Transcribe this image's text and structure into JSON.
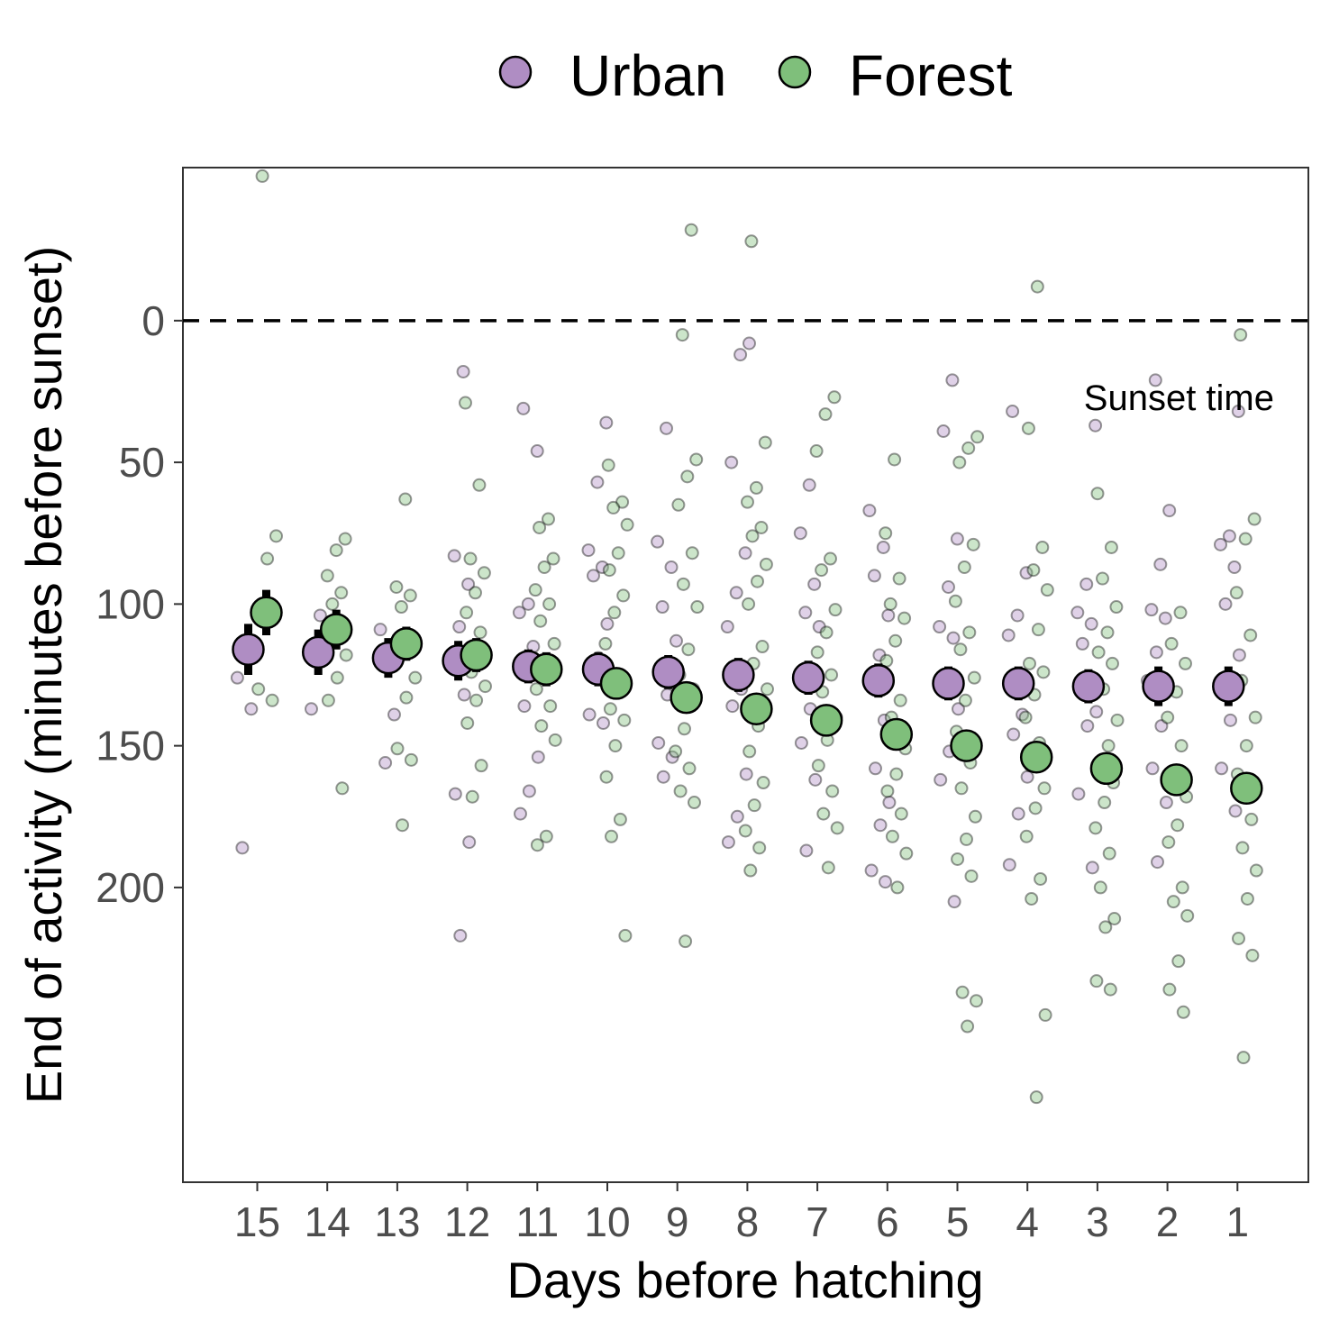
{
  "chart_data": {
    "type": "scatter",
    "title": "",
    "xlabel": "Days before hatching",
    "ylabel": "End of activity (minutes before sunset)",
    "categories": [
      "15",
      "14",
      "13",
      "12",
      "11",
      "10",
      "9",
      "8",
      "7",
      "6",
      "5",
      "4",
      "3",
      "2",
      "1"
    ],
    "ylim": [
      -54,
      304
    ],
    "y_reversed": true,
    "y_ticks": [
      0,
      50,
      100,
      150,
      200
    ],
    "reference_line": {
      "value": 0,
      "label": "Sunset time",
      "style": "dashed"
    },
    "legend": {
      "position": "top",
      "entries": [
        "Urban",
        "Forest"
      ]
    },
    "grid": false,
    "series": [
      {
        "name": "Urban",
        "color": "#af8dc3",
        "means": [
          116,
          117,
          119,
          120,
          122,
          123,
          124,
          125,
          126,
          127,
          128,
          128,
          129,
          129,
          129
        ],
        "error": [
          9,
          8,
          7,
          7,
          6,
          6,
          6,
          6,
          6,
          6,
          6,
          6,
          6,
          7,
          7
        ],
        "points": [
          [
            126,
            137,
            186
          ],
          [
            104,
            137
          ],
          [
            109,
            139,
            156
          ],
          [
            18,
            83,
            93,
            108,
            122,
            132,
            167,
            184,
            217
          ],
          [
            31,
            46,
            100,
            103,
            115,
            136,
            154,
            166,
            174
          ],
          [
            36,
            57,
            81,
            87,
            90,
            107,
            119,
            139,
            142
          ],
          [
            38,
            78,
            87,
            101,
            113,
            132,
            149,
            154,
            161
          ],
          [
            8,
            12,
            50,
            82,
            96,
            108,
            130,
            136,
            160,
            175,
            184
          ],
          [
            58,
            75,
            93,
            103,
            108,
            137,
            149,
            162,
            187
          ],
          [
            67,
            80,
            90,
            104,
            118,
            125,
            141,
            158,
            170,
            178,
            194,
            198
          ],
          [
            21,
            39,
            77,
            94,
            108,
            112,
            125,
            137,
            152,
            162,
            205
          ],
          [
            32,
            89,
            104,
            111,
            139,
            146,
            161,
            174,
            192
          ],
          [
            37,
            93,
            103,
            107,
            114,
            138,
            143,
            167,
            193
          ],
          [
            21,
            67,
            86,
            102,
            105,
            117,
            127,
            143,
            158,
            170,
            191
          ],
          [
            32,
            76,
            79,
            87,
            100,
            118,
            141,
            158,
            173
          ]
        ]
      },
      {
        "name": "Forest",
        "color": "#7fbf7b",
        "means": [
          103,
          109,
          114,
          118,
          123,
          128,
          133,
          137,
          141,
          146,
          150,
          154,
          158,
          162,
          165
        ],
        "error": [
          8,
          7,
          6,
          6,
          6,
          5,
          5,
          5,
          5,
          5,
          5,
          4,
          4,
          4,
          4
        ],
        "points": [
          [
            -51,
            76,
            84,
            130,
            134
          ],
          [
            77,
            81,
            90,
            96,
            100,
            118,
            126,
            134,
            165
          ],
          [
            63,
            94,
            97,
            101,
            126,
            133,
            151,
            155,
            178
          ],
          [
            29,
            58,
            84,
            89,
            96,
            103,
            110,
            124,
            129,
            134,
            142,
            157,
            168
          ],
          [
            70,
            73,
            84,
            87,
            95,
            100,
            106,
            114,
            125,
            130,
            136,
            143,
            148,
            182,
            185
          ],
          [
            51,
            64,
            66,
            72,
            82,
            88,
            97,
            103,
            114,
            125,
            137,
            141,
            150,
            161,
            176,
            182,
            217
          ],
          [
            -32,
            5,
            49,
            55,
            65,
            82,
            93,
            101,
            116,
            125,
            130,
            144,
            152,
            158,
            166,
            170,
            219
          ],
          [
            -28,
            43,
            59,
            64,
            73,
            76,
            86,
            92,
            100,
            115,
            121,
            130,
            143,
            152,
            163,
            171,
            180,
            186,
            194
          ],
          [
            27,
            33,
            46,
            84,
            88,
            102,
            110,
            117,
            125,
            131,
            140,
            148,
            157,
            166,
            174,
            179,
            193
          ],
          [
            49,
            75,
            91,
            100,
            105,
            113,
            120,
            134,
            140,
            151,
            160,
            166,
            174,
            182,
            188,
            200
          ],
          [
            41,
            45,
            50,
            79,
            87,
            99,
            110,
            116,
            126,
            134,
            145,
            156,
            165,
            175,
            183,
            190,
            196,
            237,
            240,
            249
          ],
          [
            -12,
            38,
            80,
            88,
            95,
            109,
            121,
            124,
            132,
            140,
            149,
            157,
            165,
            172,
            182,
            197,
            204,
            245,
            274
          ],
          [
            61,
            80,
            91,
            101,
            110,
            117,
            121,
            130,
            141,
            150,
            159,
            163,
            170,
            179,
            188,
            200,
            211,
            214,
            233,
            236
          ],
          [
            103,
            114,
            121,
            131,
            140,
            150,
            160,
            168,
            178,
            184,
            200,
            205,
            210,
            226,
            236,
            244
          ],
          [
            5,
            70,
            77,
            96,
            111,
            127,
            140,
            150,
            160,
            176,
            186,
            194,
            204,
            218,
            224,
            260
          ]
        ]
      }
    ]
  }
}
